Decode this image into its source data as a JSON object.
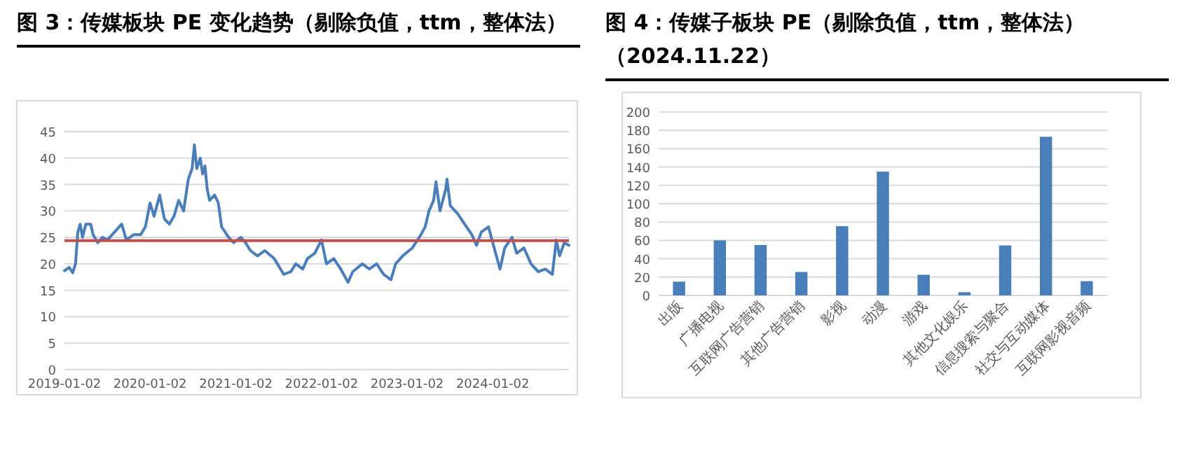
{
  "chart_data": [
    {
      "type": "line",
      "title": "图 3：传媒板块 PE 变化趋势（剔除负值，ttm，整体法）",
      "x": [
        "2019-01-02",
        "2019-01-22",
        "2019-02-06",
        "2019-02-18",
        "2019-02-28",
        "2019-03-10",
        "2019-03-20",
        "2019-04-03",
        "2019-04-24",
        "2019-05-04",
        "2019-05-24",
        "2019-06-13",
        "2019-07-04",
        "2019-08-03",
        "2019-09-03",
        "2019-09-23",
        "2019-10-23",
        "2019-11-23",
        "2019-12-13",
        "2020-01-02",
        "2020-01-19",
        "2020-02-12",
        "2020-03-03",
        "2020-03-24",
        "2020-04-13",
        "2020-05-03",
        "2020-05-24",
        "2020-06-03",
        "2020-06-13",
        "2020-06-29",
        "2020-07-09",
        "2020-07-19",
        "2020-08-03",
        "2020-08-13",
        "2020-08-23",
        "2020-09-02",
        "2020-09-12",
        "2020-10-03",
        "2020-10-19",
        "2020-11-02",
        "2020-12-02",
        "2020-12-23",
        "2021-01-23",
        "2021-02-12",
        "2021-03-05",
        "2021-04-04",
        "2021-05-05",
        "2021-06-14",
        "2021-07-25",
        "2021-08-24",
        "2021-09-14",
        "2021-10-14",
        "2021-11-03",
        "2021-12-04",
        "2022-01-02",
        "2022-01-23",
        "2022-02-23",
        "2022-03-25",
        "2022-04-25",
        "2022-05-15",
        "2022-06-25",
        "2022-07-25",
        "2022-08-25",
        "2022-09-24",
        "2022-10-25",
        "2022-11-14",
        "2022-12-14",
        "2023-01-24",
        "2023-02-23",
        "2023-03-20",
        "2023-04-05",
        "2023-04-25",
        "2023-05-05",
        "2023-05-22",
        "2023-06-15",
        "2023-06-21",
        "2023-07-05",
        "2023-08-05",
        "2023-09-04",
        "2023-10-05",
        "2023-10-25",
        "2023-11-14",
        "2023-12-15",
        "2024-01-02",
        "2024-02-02",
        "2024-02-22",
        "2024-03-24",
        "2024-04-13",
        "2024-05-14",
        "2024-06-13",
        "2024-07-14",
        "2024-08-13",
        "2024-09-12",
        "2024-09-29",
        "2024-10-13",
        "2024-11-02",
        "2024-11-22"
      ],
      "series": [
        {
          "color": "#4a7ebb",
          "values": [
            18.7,
            19.3,
            18.3,
            20,
            26,
            27.5,
            25,
            27.5,
            27.5,
            25.5,
            24,
            25,
            24.5,
            26,
            27.5,
            24.5,
            25.5,
            25.5,
            27,
            31.5,
            29,
            33,
            28.5,
            27.5,
            29,
            32,
            30,
            33,
            36,
            38,
            42.5,
            38,
            40,
            37,
            38.5,
            34,
            32,
            33,
            31.5,
            27,
            25,
            24,
            25,
            24,
            22.5,
            21.5,
            22.5,
            21,
            18,
            18.5,
            20,
            19,
            21,
            22,
            24.5,
            20,
            21,
            19,
            16.5,
            18.5,
            20,
            19,
            20,
            18,
            17,
            20,
            21.5,
            23,
            25,
            27,
            30,
            32,
            35.5,
            30,
            34,
            36,
            31,
            29.5,
            27.5,
            25.5,
            23.5,
            26,
            27,
            24,
            19,
            23,
            25,
            22,
            23,
            20,
            18.5,
            19,
            18,
            24.5,
            21.5,
            24,
            23.5
          ]
        }
      ],
      "xlim": [
        "2019-01-02",
        "2024-11-22"
      ],
      "xticks": [
        "2019-01-02",
        "2020-01-02",
        "2021-01-02",
        "2022-01-02",
        "2023-01-02",
        "2024-01-02"
      ],
      "ylim": [
        0,
        45
      ],
      "yticks": [
        0,
        5,
        10,
        15,
        20,
        25,
        30,
        35,
        40,
        45
      ],
      "grid": "y",
      "ref_lines": [
        {
          "axis": "y",
          "value": 24.4,
          "color": "#c0504d"
        }
      ]
    },
    {
      "type": "bar",
      "title": "图 4：传媒子板块 PE（剔除负值，ttm，整体法）（2024.11.22）",
      "categories": [
        "出版",
        "广播电视",
        "互联网广告营销",
        "其他广告营销",
        "影视",
        "动漫",
        "游戏",
        "其他文化娱乐",
        "信息搜索与聚合",
        "社交与互动媒体",
        "互联网影视音频"
      ],
      "values": [
        15,
        60,
        55,
        25.5,
        75.5,
        135,
        22.5,
        3.5,
        54.5,
        173,
        15.5
      ],
      "color": "#4a7ebb",
      "ylim": [
        0,
        200
      ],
      "yticks": [
        0,
        20,
        40,
        60,
        80,
        100,
        120,
        140,
        160,
        180,
        200
      ],
      "grid": "y"
    }
  ]
}
